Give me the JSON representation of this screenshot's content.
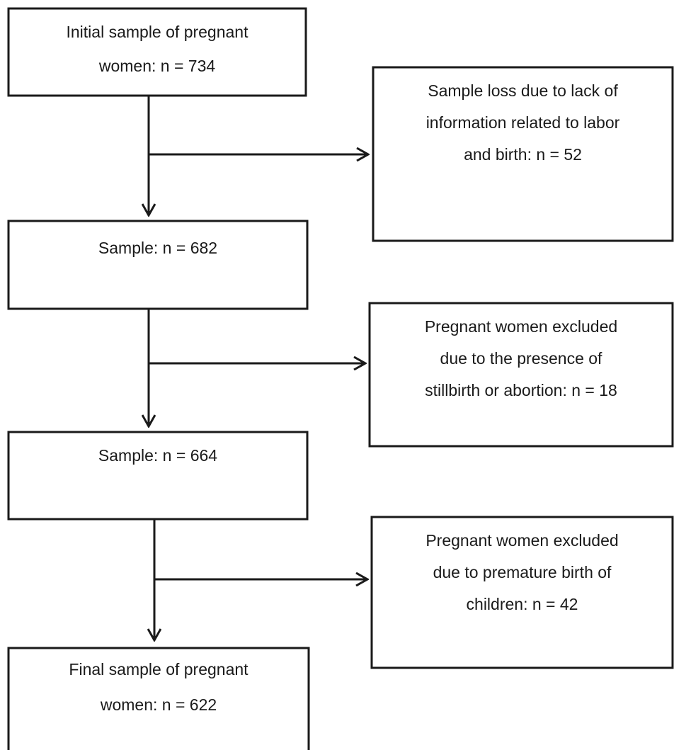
{
  "nodes": [
    {
      "lines": [
        "Initial sample of pregnant",
        "women: n = 734"
      ]
    },
    {
      "lines": [
        "Sample loss due to lack of",
        "information related to labor",
        "and birth: n = 52"
      ]
    },
    {
      "lines": [
        "Sample: n = 682"
      ]
    },
    {
      "lines": [
        "Pregnant women excluded",
        "due to the presence of",
        "stillbirth or abortion: n = 18"
      ]
    },
    {
      "lines": [
        "Sample: n = 664"
      ]
    },
    {
      "lines": [
        "Pregnant women excluded",
        "due to premature birth of",
        "children: n = 42"
      ]
    },
    {
      "lines": [
        "Final sample of pregnant",
        "women: n = 622"
      ]
    }
  ]
}
